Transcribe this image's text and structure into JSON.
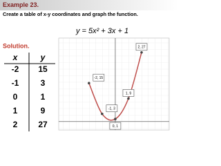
{
  "header": {
    "example": "Example 23.",
    "instruction": "Create a table of x-y coordinates and graph the function."
  },
  "equation": "y = 5x² + 3x + 1",
  "solution": "Solution.",
  "table": {
    "columns": [
      "x",
      "y"
    ],
    "rows": [
      [
        "-2",
        "15"
      ],
      [
        "-1",
        "3"
      ],
      [
        "0",
        "1"
      ],
      [
        "1",
        "9"
      ],
      [
        "2",
        "27"
      ]
    ]
  },
  "chart_data": {
    "type": "line",
    "x": [
      -2,
      -1,
      0,
      1,
      2
    ],
    "values": [
      15,
      3,
      1,
      9,
      27
    ],
    "value_labels": [
      "-2, 15",
      "-1, 3",
      "0, 1",
      "1, 9",
      "2, 27"
    ],
    "color": "#c0504d",
    "xlim": [
      -4.3,
      4.1
    ],
    "ylim": [
      -3.3,
      32.6
    ]
  }
}
